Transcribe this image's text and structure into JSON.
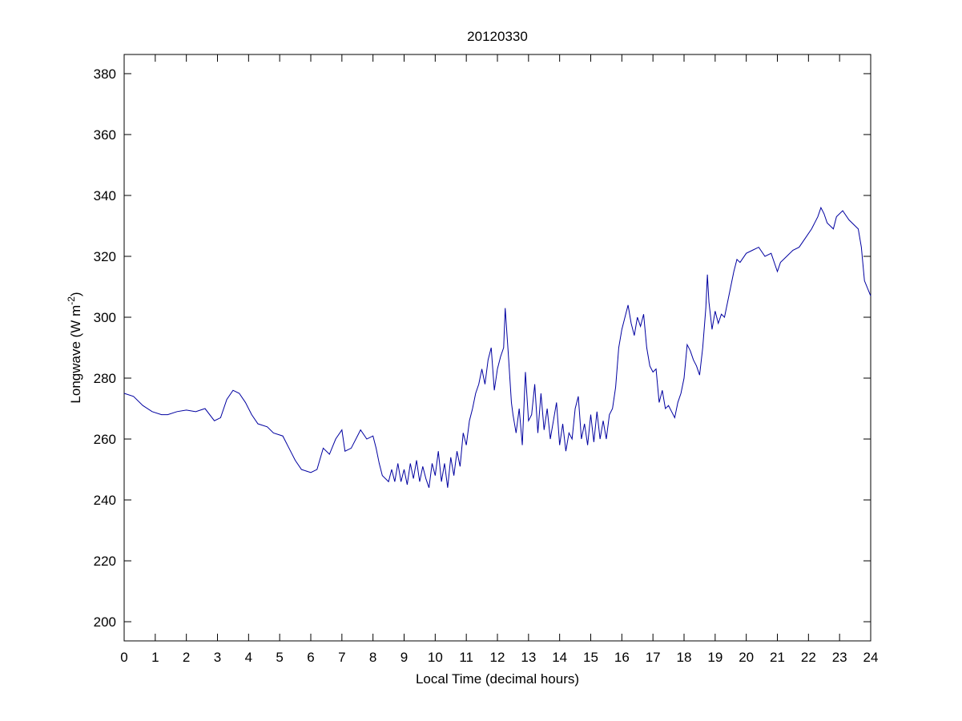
{
  "chart_data": {
    "type": "line",
    "title": "20120330",
    "xlabel": "Local Time (decimal hours)",
    "ylabel_parts": [
      "Longwave (W m",
      "-2",
      ")"
    ],
    "xlim": [
      0,
      24
    ],
    "ylim": [
      193.7,
      386.3
    ],
    "xticks": [
      0,
      1,
      2,
      3,
      4,
      5,
      6,
      7,
      8,
      9,
      10,
      11,
      12,
      13,
      14,
      15,
      16,
      17,
      18,
      19,
      20,
      21,
      22,
      23,
      24
    ],
    "yticks": [
      200,
      220,
      240,
      260,
      280,
      300,
      320,
      340,
      360,
      380
    ],
    "series": [
      {
        "color": "#0000a0",
        "x": [
          0,
          0.3,
          0.6,
          0.9,
          1.2,
          1.4,
          1.7,
          2.0,
          2.3,
          2.6,
          2.9,
          3.1,
          3.3,
          3.5,
          3.7,
          3.9,
          4.1,
          4.3,
          4.6,
          4.8,
          5.1,
          5.3,
          5.5,
          5.7,
          6.0,
          6.2,
          6.4,
          6.6,
          6.8,
          7.0,
          7.1,
          7.3,
          7.5,
          7.6,
          7.8,
          8.0,
          8.1,
          8.2,
          8.3,
          8.5,
          8.6,
          8.7,
          8.8,
          8.9,
          9.0,
          9.1,
          9.2,
          9.3,
          9.4,
          9.5,
          9.6,
          9.7,
          9.8,
          9.9,
          10.0,
          10.1,
          10.2,
          10.3,
          10.4,
          10.5,
          10.6,
          10.7,
          10.8,
          10.9,
          11.0,
          11.1,
          11.2,
          11.3,
          11.4,
          11.5,
          11.6,
          11.7,
          11.8,
          11.9,
          12.0,
          12.1,
          12.2,
          12.25,
          12.35,
          12.45,
          12.5,
          12.6,
          12.7,
          12.8,
          12.9,
          13.0,
          13.1,
          13.2,
          13.3,
          13.4,
          13.5,
          13.6,
          13.7,
          13.8,
          13.9,
          14.0,
          14.1,
          14.2,
          14.3,
          14.4,
          14.5,
          14.6,
          14.7,
          14.8,
          14.9,
          15.0,
          15.1,
          15.2,
          15.3,
          15.4,
          15.5,
          15.6,
          15.7,
          15.8,
          15.9,
          16.0,
          16.1,
          16.2,
          16.3,
          16.4,
          16.5,
          16.6,
          16.7,
          16.8,
          16.9,
          17.0,
          17.1,
          17.2,
          17.3,
          17.4,
          17.5,
          17.6,
          17.7,
          17.8,
          17.9,
          18.0,
          18.1,
          18.2,
          18.3,
          18.4,
          18.5,
          18.6,
          18.7,
          18.75,
          18.8,
          18.9,
          19.0,
          19.1,
          19.2,
          19.3,
          19.4,
          19.5,
          19.6,
          19.7,
          19.8,
          20.0,
          20.2,
          20.4,
          20.6,
          20.8,
          21.0,
          21.1,
          21.3,
          21.5,
          21.7,
          21.9,
          22.1,
          22.3,
          22.4,
          22.5,
          22.6,
          22.7,
          22.8,
          22.9,
          23.1,
          23.3,
          23.5,
          23.6,
          23.7,
          23.8,
          24.0
        ],
        "values": [
          275,
          274,
          271,
          269,
          268,
          268,
          269,
          269.5,
          269,
          270,
          266,
          267,
          273,
          276,
          275,
          272,
          268,
          265,
          264,
          262,
          261,
          257,
          253,
          250,
          249,
          250,
          257,
          255,
          260,
          263,
          256,
          257,
          261,
          263,
          260,
          261,
          257,
          252,
          248,
          246,
          250,
          246,
          252,
          246,
          250,
          245,
          252,
          247,
          253,
          246,
          251,
          247,
          244,
          252,
          248,
          256,
          246,
          252,
          244,
          254,
          248,
          256,
          251,
          262,
          258,
          266,
          270,
          275,
          278,
          283,
          278,
          286,
          290,
          276,
          283,
          287,
          290,
          303,
          288,
          272,
          268,
          262,
          270,
          258,
          282,
          266,
          268,
          278,
          262,
          275,
          263,
          270,
          260,
          266,
          272,
          258,
          265,
          256,
          262,
          260,
          270,
          274,
          260,
          265,
          258,
          268,
          259,
          269,
          260,
          266,
          260,
          268,
          270,
          277,
          290,
          296,
          300,
          304,
          298,
          294,
          300,
          297,
          301,
          290,
          284,
          282,
          283,
          272,
          276,
          270,
          271,
          269,
          267,
          272,
          275,
          280,
          291,
          289,
          286,
          284,
          281,
          290,
          303,
          314,
          305,
          296,
          302,
          298,
          301,
          300,
          305,
          310,
          315,
          319,
          318,
          321,
          322,
          323,
          320,
          321,
          315,
          318,
          320,
          322,
          323,
          326,
          329,
          333,
          336,
          334,
          331,
          330,
          329,
          333,
          335,
          332,
          330,
          329,
          323,
          312,
          307
        ]
      }
    ]
  }
}
